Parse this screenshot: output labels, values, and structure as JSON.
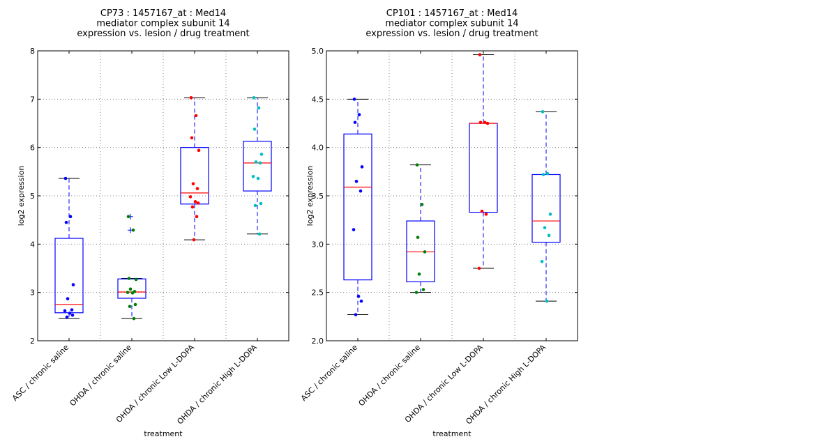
{
  "chart_data": [
    {
      "type": "box",
      "title_lines": [
        "CP73 : 1457167_at : Med14",
        "mediator complex subunit 14",
        "expression vs. lesion / drug treatment"
      ],
      "xlabel": "treatment",
      "ylabel": "log2 expression",
      "ylim": [
        2,
        8
      ],
      "yticks": [
        2,
        3,
        4,
        5,
        6,
        7,
        8
      ],
      "ytick_labels": [
        "2",
        "3",
        "4",
        "5",
        "6",
        "7",
        "8"
      ],
      "grid": true,
      "categories": [
        "ASC / chronic saline",
        "OHDA / chronic saline",
        "OHDA / chronic Low L-DOPA",
        "OHDA / chronic High L-DOPA"
      ],
      "groups": [
        {
          "name": "ASC / chronic saline",
          "color": "#0000ff",
          "whisker_low": 2.46,
          "q1": 2.58,
          "median": 2.75,
          "q3": 4.12,
          "whisker_high": 5.36,
          "outliers": [],
          "points": [
            5.36,
            4.57,
            4.45,
            3.16,
            2.87,
            2.64,
            2.62,
            2.57,
            2.53,
            2.49
          ]
        },
        {
          "name": "OHDA / chronic saline",
          "color": "#008000",
          "whisker_low": 2.46,
          "q1": 2.88,
          "median": 3.01,
          "q3": 3.28,
          "whisker_high": 3.29,
          "outliers": [
            4.57,
            4.29
          ],
          "points": [
            4.57,
            4.29,
            3.29,
            3.27,
            3.07,
            3.02,
            3.0,
            2.99,
            2.75,
            2.71,
            2.46
          ]
        },
        {
          "name": "OHDA / chronic Low L-DOPA",
          "color": "#ff0000",
          "whisker_low": 4.09,
          "q1": 4.83,
          "median": 5.06,
          "q3": 6.0,
          "whisker_high": 7.03,
          "outliers": [],
          "points": [
            7.03,
            6.66,
            6.2,
            5.94,
            5.25,
            5.15,
            4.98,
            4.88,
            4.85,
            4.77,
            4.57,
            4.09
          ]
        },
        {
          "name": "OHDA / chronic High L-DOPA",
          "color": "#00bfbf",
          "whisker_low": 4.21,
          "q1": 5.1,
          "median": 5.68,
          "q3": 6.13,
          "whisker_high": 7.03,
          "outliers": [],
          "points": [
            7.03,
            6.82,
            6.38,
            5.86,
            5.7,
            5.68,
            5.4,
            5.36,
            4.84,
            4.8,
            4.21
          ]
        }
      ]
    },
    {
      "type": "box",
      "title_lines": [
        "CP101 : 1457167_at : Med14",
        "mediator complex subunit 14",
        "expression vs. lesion / drug treatment"
      ],
      "xlabel": "treatment",
      "ylabel": "log2 expression",
      "ylim": [
        2.0,
        5.0
      ],
      "yticks": [
        2.0,
        2.5,
        3.0,
        3.5,
        4.0,
        4.5,
        5.0
      ],
      "ytick_labels": [
        "2.0",
        "2.5",
        "3.0",
        "3.5",
        "4.0",
        "4.5",
        "5.0"
      ],
      "grid": true,
      "categories": [
        "ASC / chronic saline",
        "OHDA / chronic saline",
        "OHDA / chronic Low L-DOPA",
        "OHDA / chronic High L-DOPA"
      ],
      "groups": [
        {
          "name": "ASC / chronic saline",
          "color": "#0000ff",
          "whisker_low": 2.27,
          "q1": 2.63,
          "median": 3.59,
          "q3": 4.14,
          "whisker_high": 4.5,
          "outliers": [],
          "points": [
            4.5,
            4.34,
            4.26,
            3.8,
            3.65,
            3.55,
            3.15,
            2.46,
            2.41,
            2.27
          ]
        },
        {
          "name": "OHDA / chronic saline",
          "color": "#008000",
          "whisker_low": 2.5,
          "q1": 2.61,
          "median": 2.92,
          "q3": 3.24,
          "whisker_high": 3.82,
          "outliers": [],
          "points": [
            3.82,
            3.41,
            3.07,
            2.92,
            2.69,
            2.53,
            2.5
          ]
        },
        {
          "name": "OHDA / chronic Low L-DOPA",
          "color": "#ff0000",
          "whisker_low": 2.75,
          "q1": 3.33,
          "median": 4.25,
          "q3": 4.25,
          "whisker_high": 4.96,
          "outliers": [],
          "points": [
            4.96,
            4.26,
            4.26,
            4.25,
            3.34,
            3.31,
            2.75
          ]
        },
        {
          "name": "OHDA / chronic High L-DOPA",
          "color": "#00bfbf",
          "whisker_low": 2.41,
          "q1": 3.02,
          "median": 3.24,
          "q3": 3.72,
          "whisker_high": 4.37,
          "outliers": [],
          "points": [
            4.37,
            3.73,
            3.72,
            3.31,
            3.17,
            3.09,
            2.82,
            2.41
          ]
        }
      ]
    }
  ],
  "style": {
    "box_color": "#0000ff",
    "median_color": "#ff0000",
    "whisker_color": "#0000ff",
    "cap_color": "#000000",
    "grid_color": "#808080"
  }
}
